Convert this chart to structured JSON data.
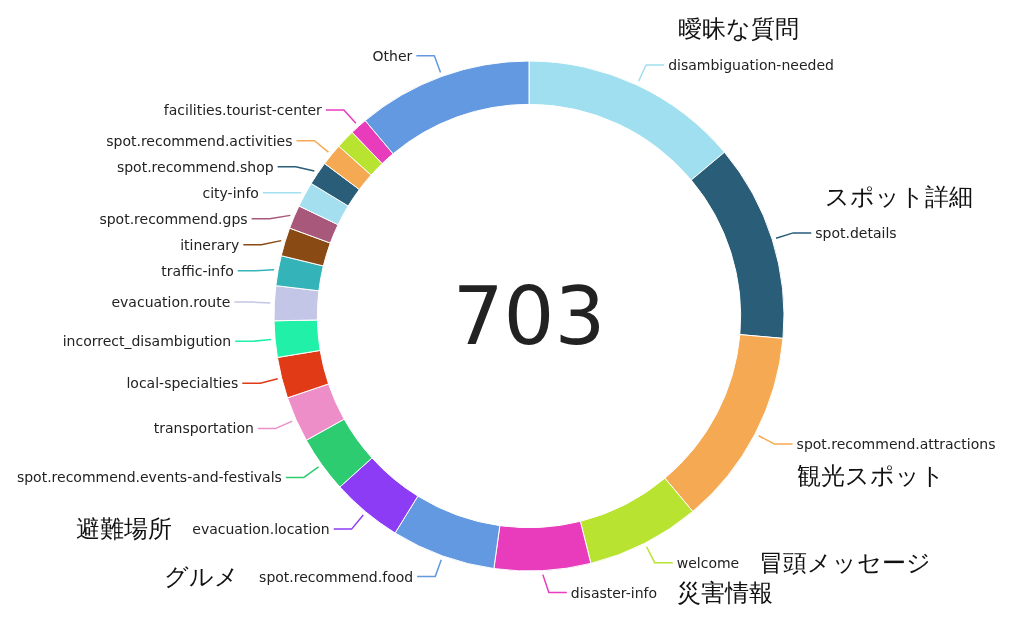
{
  "chart_data": {
    "type": "donut",
    "categories": [
      "disambiguation-needed",
      "spot.details",
      "spot.recommend.attractions",
      "welcome",
      "disaster-info",
      "spot.recommend.food",
      "evacuation.location",
      "spot.recommend.events-and-festivals",
      "transportation",
      "local-specialties",
      "incorrect_disambigution",
      "evacuation.route",
      "traffic-info",
      "itinerary",
      "spot.recommend.gps",
      "city-info",
      "spot.recommend.shop",
      "spot.recommend.activities",
      null,
      "facilities.tourist-center",
      "Other"
    ],
    "values": [
      13.9,
      12.5,
      12.5,
      7.2,
      6.1,
      6.6,
      4.5,
      3.6,
      2.9,
      2.6,
      2.3,
      2.2,
      1.9,
      1.8,
      1.5,
      1.6,
      1.5,
      1.4,
      1.2,
      1.1,
      11.1
    ],
    "colors": [
      "#a0dff0",
      "#295d78",
      "#f5a952",
      "#b8e330",
      "#e83cbd",
      "#6299e0",
      "#8c3cf5",
      "#2ecc71",
      "#ee8ec8",
      "#e03a16",
      "#20f0a8",
      "#c3c6e6",
      "#34b3b8",
      "#8a4a14",
      "#a8587a",
      "#a4dff0",
      "#295d78",
      "#f5a952",
      "#b8e330",
      "#e83cbd",
      "#6299e0"
    ],
    "annotations": [
      "703",
      {
        "text": "曖昧な質問",
        "x": "disambiguation-needed"
      },
      {
        "text": "スポット詳細",
        "x": "spot.details"
      },
      {
        "text": "観光スポット",
        "x": "spot.recommend.attractions"
      },
      {
        "text": "冒頭メッセージ",
        "x": "welcome"
      },
      {
        "text": "災害情報",
        "x": "disaster-info"
      },
      {
        "text": "グルメ",
        "x": "spot.recommend.food"
      },
      {
        "text": "避難場所",
        "x": "evacuation.location"
      }
    ]
  }
}
